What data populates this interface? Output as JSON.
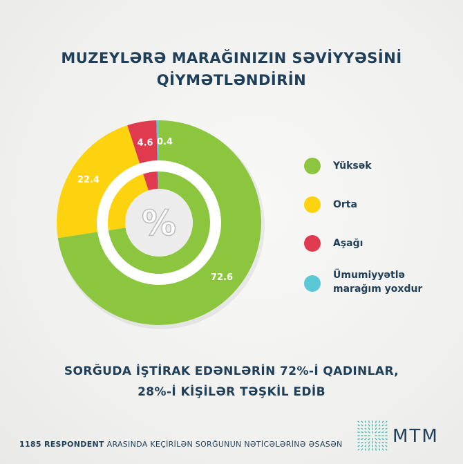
{
  "title": {
    "line1": "MUZEYLƏRƏ MARAĞINIZIN SƏVİYYƏSİNİ",
    "line2": "QİYMƏTLƏNDİRİN"
  },
  "chart_data": {
    "type": "pie",
    "title": "MUZEYLƏRƏ MARAĞINIZIN SƏVİYYƏSİNİ QİYMƏTLƏNDİRİN",
    "center_label": "%",
    "slices": [
      {
        "name": "Yüksək",
        "value": 72.6,
        "label": "72.6",
        "color": "#8cc63f"
      },
      {
        "name": "Orta",
        "value": 22.4,
        "label": "22.4",
        "color": "#fdd30f"
      },
      {
        "name": "Aşağı",
        "value": 4.6,
        "label": "4.6",
        "color": "#e03a4e"
      },
      {
        "name": "Ümumiyyətlə marağım yoxdur",
        "value": 0.4,
        "label": "0.4",
        "color": "#5bc8d6"
      }
    ],
    "legend_position": "right"
  },
  "legend": [
    {
      "line1": "Yüksək",
      "line2": "",
      "color": "#8cc63f"
    },
    {
      "line1": "Orta",
      "line2": "",
      "color": "#fdd30f"
    },
    {
      "line1": "Aşağı",
      "line2": "",
      "color": "#e03a4e"
    },
    {
      "line1": "Ümumiyyətlə",
      "line2": "marağım yoxdur",
      "color": "#5bc8d6"
    }
  ],
  "note": {
    "line1": "SORĞUDA İŞTİRAK EDƏNLƏRİN 72%-İ QADINLAR,",
    "line2": "28%-İ KİŞİLƏR TƏŞKİL EDİB"
  },
  "footer": {
    "bold": "1185 RESPONDENT",
    "rest": " ARASINDA KEÇİRİLƏN SORĞUNUN NƏTİCƏLƏRİNƏ ƏSASƏN"
  },
  "logo": {
    "text": "MTM",
    "color": "#2bb6a8"
  }
}
